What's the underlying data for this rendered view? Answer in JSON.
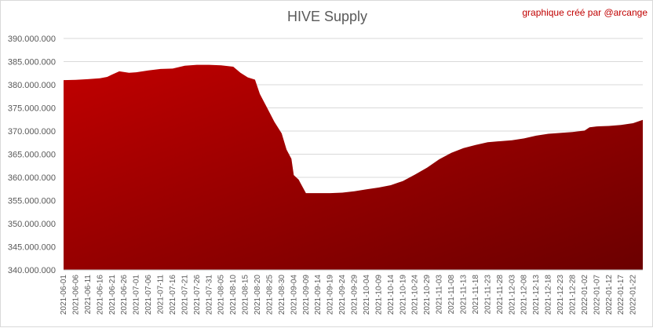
{
  "chart_data": {
    "type": "area",
    "title": "HIVE Supply",
    "annotation": "graphique créé par @arcange",
    "xlabel": "",
    "ylabel": "",
    "ylim": [
      340000000,
      390000000
    ],
    "yticks": [
      "340.000.000",
      "345.000.000",
      "350.000.000",
      "355.000.000",
      "360.000.000",
      "365.000.000",
      "370.000.000",
      "375.000.000",
      "380.000.000",
      "385.000.000",
      "390.000.000"
    ],
    "grid": true,
    "legend": "none",
    "fill_color_top": "#c00000",
    "fill_color_bottom": "#6b0000",
    "xtick_labels": [
      "2021-06-01",
      "2021-06-06",
      "2021-06-11",
      "2021-06-16",
      "2021-06-21",
      "2021-06-26",
      "2021-07-01",
      "2021-07-06",
      "2021-07-11",
      "2021-07-16",
      "2021-07-21",
      "2021-07-26",
      "2021-07-31",
      "2021-08-05",
      "2021-08-10",
      "2021-08-15",
      "2021-08-20",
      "2021-08-25",
      "2021-08-30",
      "2021-09-04",
      "2021-09-09",
      "2021-09-14",
      "2021-09-19",
      "2021-09-24",
      "2021-09-29",
      "2021-10-04",
      "2021-10-09",
      "2021-10-14",
      "2021-10-19",
      "2021-10-24",
      "2021-10-29",
      "2021-11-03",
      "2021-11-08",
      "2021-11-13",
      "2021-11-18",
      "2021-11-23",
      "2021-11-28",
      "2021-12-03",
      "2021-12-08",
      "2021-12-13",
      "2021-12-18",
      "2021-12-23",
      "2021-12-28",
      "2022-01-02",
      "2022-01-07",
      "2022-01-12",
      "2022-01-17",
      "2022-01-22"
    ],
    "series": [
      {
        "values": [
          {
            "x": "2021-06-01",
            "y": 381000000
          },
          {
            "x": "2021-06-06",
            "y": 381050000
          },
          {
            "x": "2021-06-11",
            "y": 381200000
          },
          {
            "x": "2021-06-16",
            "y": 381400000
          },
          {
            "x": "2021-06-19",
            "y": 381700000
          },
          {
            "x": "2021-06-21",
            "y": 382200000
          },
          {
            "x": "2021-06-24",
            "y": 382900000
          },
          {
            "x": "2021-06-28",
            "y": 382600000
          },
          {
            "x": "2021-07-01",
            "y": 382700000
          },
          {
            "x": "2021-07-06",
            "y": 383100000
          },
          {
            "x": "2021-07-11",
            "y": 383400000
          },
          {
            "x": "2021-07-16",
            "y": 383500000
          },
          {
            "x": "2021-07-21",
            "y": 384100000
          },
          {
            "x": "2021-07-26",
            "y": 384300000
          },
          {
            "x": "2021-07-31",
            "y": 384300000
          },
          {
            "x": "2021-08-05",
            "y": 384200000
          },
          {
            "x": "2021-08-10",
            "y": 383900000
          },
          {
            "x": "2021-08-13",
            "y": 382600000
          },
          {
            "x": "2021-08-16",
            "y": 381600000
          },
          {
            "x": "2021-08-19",
            "y": 381100000
          },
          {
            "x": "2021-08-21",
            "y": 378000000
          },
          {
            "x": "2021-08-24",
            "y": 375000000
          },
          {
            "x": "2021-08-27",
            "y": 372000000
          },
          {
            "x": "2021-08-30",
            "y": 369500000
          },
          {
            "x": "2021-09-01",
            "y": 366000000
          },
          {
            "x": "2021-09-03",
            "y": 364000000
          },
          {
            "x": "2021-09-04",
            "y": 360500000
          },
          {
            "x": "2021-09-06",
            "y": 359500000
          },
          {
            "x": "2021-09-09",
            "y": 356600000
          },
          {
            "x": "2021-09-14",
            "y": 356600000
          },
          {
            "x": "2021-09-19",
            "y": 356600000
          },
          {
            "x": "2021-09-24",
            "y": 356700000
          },
          {
            "x": "2021-09-29",
            "y": 357000000
          },
          {
            "x": "2021-10-04",
            "y": 357400000
          },
          {
            "x": "2021-10-09",
            "y": 357800000
          },
          {
            "x": "2021-10-14",
            "y": 358300000
          },
          {
            "x": "2021-10-19",
            "y": 359200000
          },
          {
            "x": "2021-10-24",
            "y": 360600000
          },
          {
            "x": "2021-10-29",
            "y": 362100000
          },
          {
            "x": "2021-11-03",
            "y": 363900000
          },
          {
            "x": "2021-11-08",
            "y": 365300000
          },
          {
            "x": "2021-11-13",
            "y": 366300000
          },
          {
            "x": "2021-11-18",
            "y": 367000000
          },
          {
            "x": "2021-11-23",
            "y": 367600000
          },
          {
            "x": "2021-11-28",
            "y": 367800000
          },
          {
            "x": "2021-12-03",
            "y": 368000000
          },
          {
            "x": "2021-12-08",
            "y": 368400000
          },
          {
            "x": "2021-12-13",
            "y": 369000000
          },
          {
            "x": "2021-12-18",
            "y": 369400000
          },
          {
            "x": "2021-12-23",
            "y": 369600000
          },
          {
            "x": "2021-12-28",
            "y": 369800000
          },
          {
            "x": "2022-01-02",
            "y": 370100000
          },
          {
            "x": "2022-01-04",
            "y": 370800000
          },
          {
            "x": "2022-01-07",
            "y": 371000000
          },
          {
            "x": "2022-01-12",
            "y": 371100000
          },
          {
            "x": "2022-01-17",
            "y": 371300000
          },
          {
            "x": "2022-01-22",
            "y": 371700000
          },
          {
            "x": "2022-01-26",
            "y": 372400000
          }
        ]
      }
    ]
  }
}
